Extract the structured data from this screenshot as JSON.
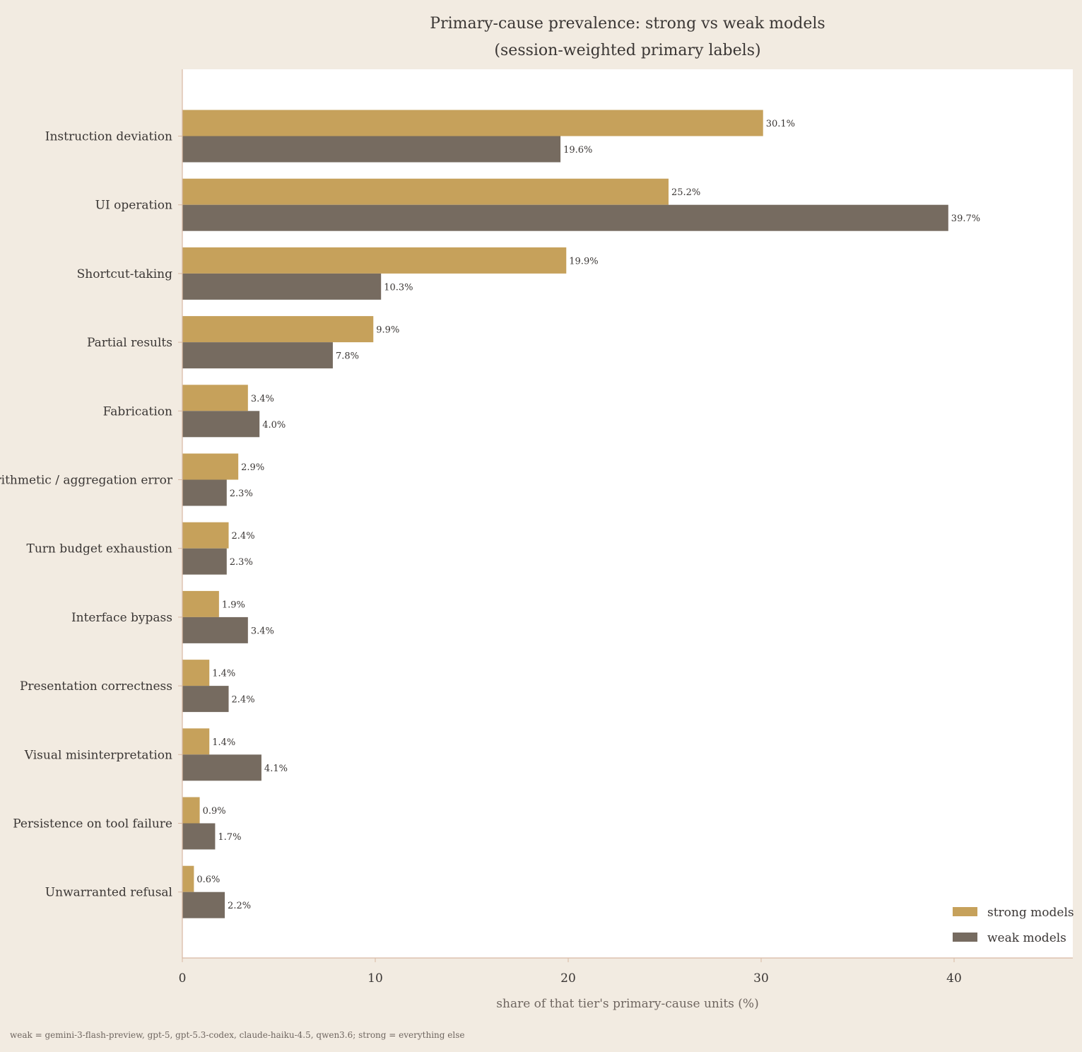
{
  "chart_data": {
    "type": "bar",
    "orientation": "horizontal",
    "title": "Primary-cause prevalence: strong vs weak models",
    "subtitle": "(session-weighted primary labels)",
    "xlabel": "share of that tier's primary-cause units (%)",
    "ylabel": "",
    "xlim": [
      0,
      46
    ],
    "xticks": [
      0,
      10,
      20,
      30,
      40
    ],
    "categories": [
      "Instruction deviation",
      "UI operation",
      "Shortcut-taking",
      "Partial results",
      "Fabrication",
      "Arithmetic / aggregation error",
      "Turn budget exhaustion",
      "Interface bypass",
      "Presentation correctness",
      "Visual misinterpretation",
      "Persistence on tool failure",
      "Unwarranted refusal"
    ],
    "series": [
      {
        "name": "strong models",
        "color": "#c6a15b",
        "values": [
          30.1,
          25.2,
          19.9,
          9.9,
          3.4,
          2.9,
          2.4,
          1.9,
          1.4,
          1.4,
          0.9,
          0.6
        ],
        "labels": [
          "30.1%",
          "25.2%",
          "19.9%",
          "9.9%",
          "3.4%",
          "2.9%",
          "2.4%",
          "1.9%",
          "1.4%",
          "1.4%",
          "0.9%",
          "0.6%"
        ]
      },
      {
        "name": "weak models",
        "color": "#766b60",
        "values": [
          19.6,
          39.7,
          10.3,
          7.8,
          4.0,
          2.3,
          2.3,
          3.4,
          2.4,
          4.1,
          1.7,
          2.2
        ],
        "labels": [
          "19.6%",
          "39.7%",
          "10.3%",
          "7.8%",
          "4.0%",
          "2.3%",
          "2.3%",
          "3.4%",
          "2.4%",
          "4.1%",
          "1.7%",
          "2.2%"
        ]
      }
    ],
    "legend": {
      "position": "bottom-right"
    },
    "grid": false,
    "footnote": "weak = gemini-3-flash-preview, gpt-5, gpt-5.3-codex, claude-haiku-4.5, qwen3.6; strong = everything else"
  },
  "colors": {
    "background": "#f2ebe1",
    "plot_background": "#ffffff",
    "axis": "#d8b8a3",
    "text": "#3a3634",
    "muted_text": "#6f6660"
  }
}
